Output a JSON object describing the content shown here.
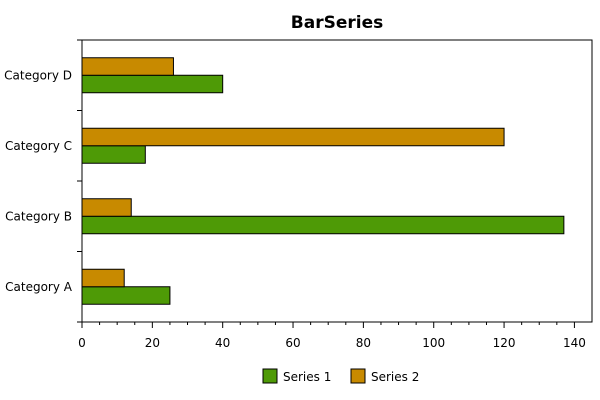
{
  "chart_data": {
    "type": "bar",
    "orientation": "horizontal",
    "title": "BarSeries",
    "categories": [
      "Category A",
      "Category B",
      "Category C",
      "Category D"
    ],
    "series": [
      {
        "name": "Series 1",
        "values": [
          25,
          137,
          18,
          40
        ],
        "color": "#4e9a06"
      },
      {
        "name": "Series 2",
        "values": [
          12,
          14,
          120,
          26
        ],
        "color": "#c88a00"
      }
    ],
    "xlim": [
      0,
      145
    ],
    "x_ticks": [
      0,
      20,
      40,
      60,
      80,
      100,
      120,
      140
    ],
    "grid": false,
    "legend_position": "bottom-center"
  }
}
